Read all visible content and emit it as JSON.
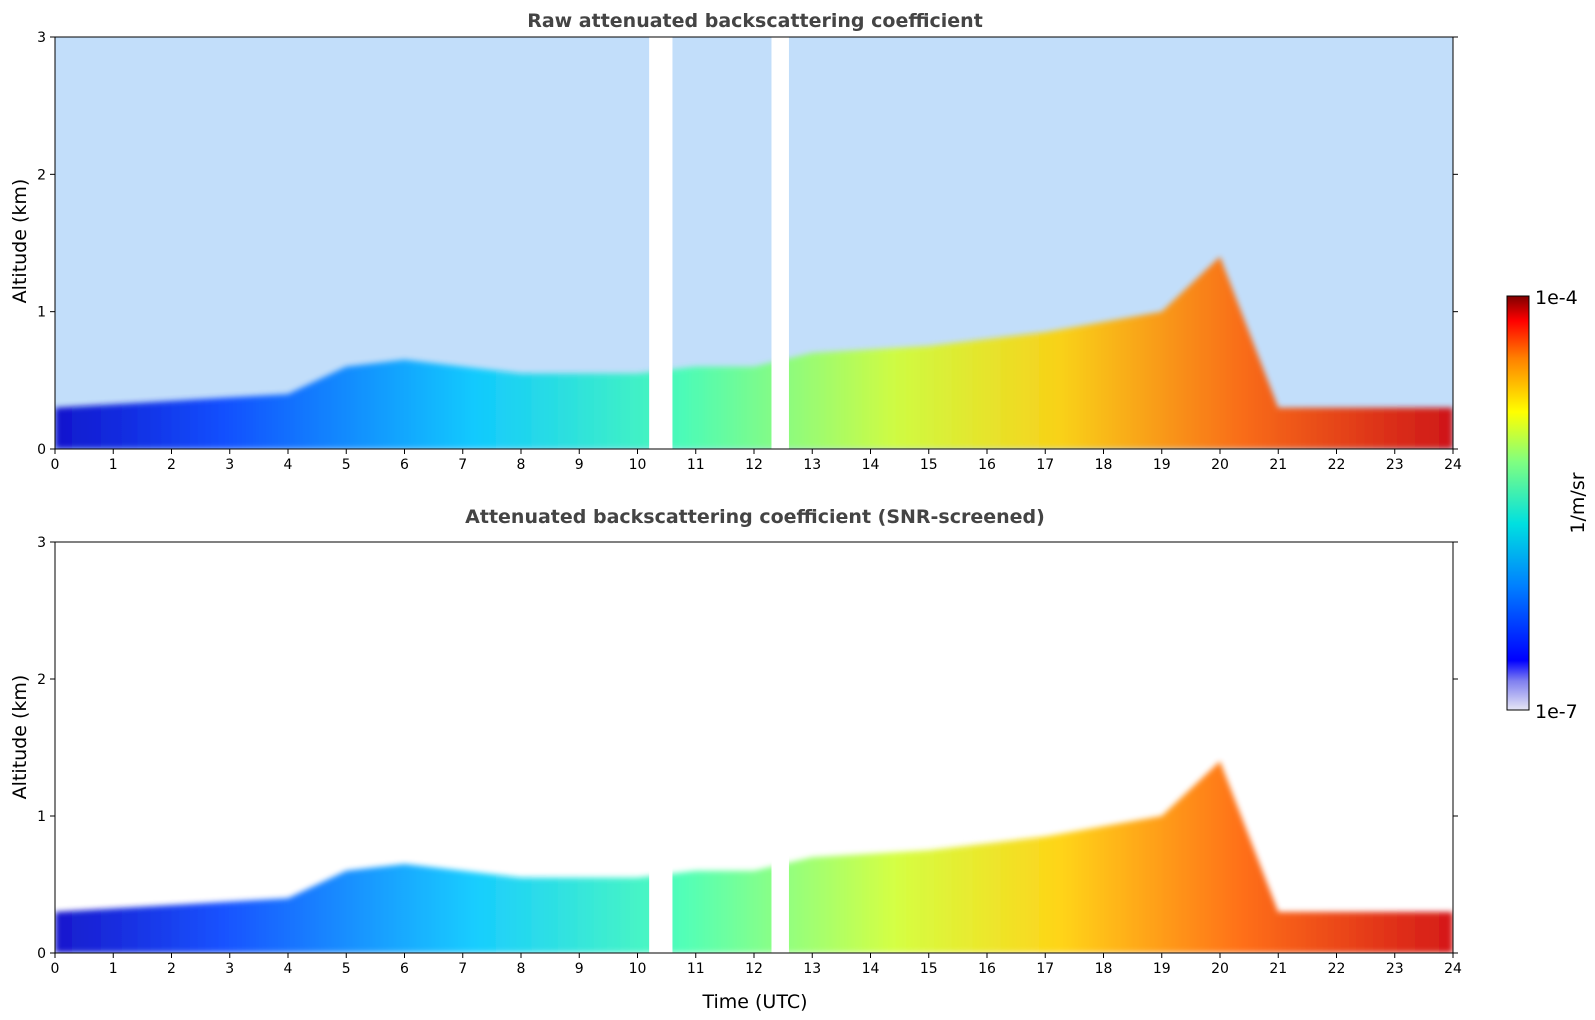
{
  "chart_data": [
    {
      "type": "heatmap",
      "title": "Raw attenuated backscattering coefficient",
      "xlabel": "",
      "ylabel": "Altitude (km)",
      "xlim": [
        0,
        24
      ],
      "ylim": [
        0,
        3
      ],
      "xticks": [
        "0",
        "1",
        "2",
        "3",
        "4",
        "5",
        "6",
        "7",
        "8",
        "9",
        "10",
        "11",
        "12",
        "13",
        "14",
        "15",
        "16",
        "17",
        "18",
        "19",
        "20",
        "21",
        "22",
        "23",
        "24"
      ],
      "yticks": [
        "0",
        "1",
        "2",
        "3"
      ],
      "data_gaps_utc": [
        [
          10.2,
          10.6
        ],
        [
          12.3,
          12.6
        ]
      ],
      "boundary_layer_top_km": [
        [
          0,
          0.3
        ],
        [
          4,
          0.4
        ],
        [
          5,
          0.6
        ],
        [
          6,
          0.65
        ],
        [
          7,
          0.6
        ],
        [
          8,
          0.55
        ],
        [
          9,
          0.55
        ],
        [
          10,
          0.55
        ],
        [
          11,
          0.6
        ],
        [
          12,
          0.6
        ],
        [
          13,
          0.7
        ],
        [
          15,
          0.75
        ],
        [
          17,
          0.85
        ],
        [
          19,
          1.0
        ],
        [
          20,
          1.4
        ],
        [
          21,
          0.3
        ],
        [
          24,
          0.3
        ]
      ]
    },
    {
      "type": "heatmap",
      "title": "Attenuated backscattering coefficient (SNR-screened)",
      "xlabel": "Time (UTC)",
      "ylabel": "Altitude (km)",
      "xlim": [
        0,
        24
      ],
      "ylim": [
        0,
        3
      ],
      "xticks": [
        "0",
        "1",
        "2",
        "3",
        "4",
        "5",
        "6",
        "7",
        "8",
        "9",
        "10",
        "11",
        "12",
        "13",
        "14",
        "15",
        "16",
        "17",
        "18",
        "19",
        "20",
        "21",
        "22",
        "23",
        "24"
      ],
      "yticks": [
        "0",
        "1",
        "2",
        "3"
      ],
      "data_gaps_utc": [
        [
          10.2,
          10.6
        ],
        [
          12.3,
          12.6
        ]
      ]
    }
  ],
  "colorbar": {
    "label": "1/m/sr",
    "max_label": "1e-4",
    "min_label": "1e-7",
    "scale": "log",
    "colormap": [
      "#e6e6f5",
      "#0000ff",
      "#0080ff",
      "#00e0e0",
      "#80ff80",
      "#ffff00",
      "#ff8000",
      "#ff0000",
      "#800000"
    ]
  }
}
